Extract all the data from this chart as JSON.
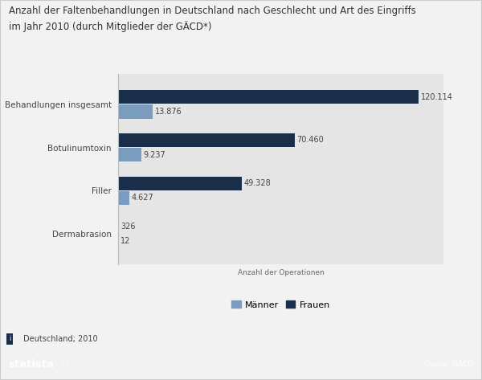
{
  "title": "Anzahl der Faltenbehandlungen in Deutschland nach Geschlecht und Art des Eingriffs\nim Jahr 2010 (durch Mitglieder der GÄCD*)",
  "categories": [
    "Behandlungen insgesamt",
    "Botulinumtoxin",
    "Filler",
    "Dermabrasion"
  ],
  "frauen_values": [
    120114,
    70460,
    49328,
    326
  ],
  "manner_values": [
    13876,
    9237,
    4627,
    12
  ],
  "frauen_color": "#1a2e4a",
  "manner_color": "#7a9cbf",
  "xlabel": "Anzahl der Operationen",
  "legend_manner": "Männer",
  "legend_frauen": "Frauen",
  "footnote": "Deutschland; 2010",
  "source": "Quelle: GÄCD",
  "bg_color": "#f2f2f2",
  "plot_bg_color": "#e5e5e5",
  "footer_bg": "#1a2e4a",
  "bar_height": 0.32,
  "xlim": [
    0,
    130000
  ],
  "title_fontsize": 8.5,
  "label_fontsize": 7.5,
  "value_fontsize": 7.0,
  "legend_fontsize": 8.0,
  "footer_fontsize": 9.5
}
